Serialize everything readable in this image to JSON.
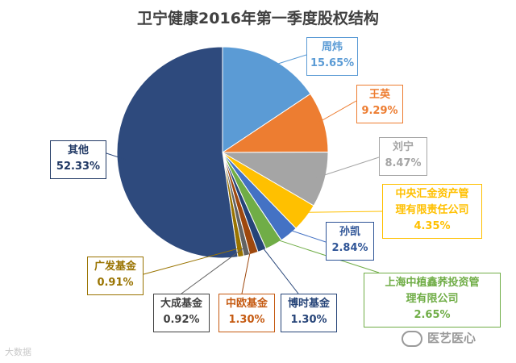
{
  "chart_data": {
    "type": "pie",
    "title": "卫宁健康2016年第一季度股权结构",
    "start_angle_deg": 0,
    "direction": "clockwise",
    "slices": [
      {
        "name": "周炜",
        "value_label": "15.65%",
        "value": 15.65,
        "color": "#5b9bd5",
        "label_color": "#5b9bd5"
      },
      {
        "name": "王英",
        "value_label": "9.29%",
        "value": 9.29,
        "color": "#ed7d31",
        "label_color": "#ed7d31"
      },
      {
        "name": "刘宁",
        "value_label": "8.47%",
        "value": 8.47,
        "color": "#a5a5a5",
        "label_color": "#a5a5a5"
      },
      {
        "name": "中央汇金资产管理有限责任公司",
        "name_line1": "中央汇金资产管",
        "name_line2": "理有限责任公司",
        "value_label": "4.35%",
        "value": 4.35,
        "color": "#ffc000",
        "label_color": "#ffc000"
      },
      {
        "name": "孙凯",
        "value_label": "2.84%",
        "value": 2.84,
        "color": "#4472c4",
        "label_color": "#2f5597"
      },
      {
        "name": "上海中植鑫荞投资管理有限公司",
        "name_line1": "上海中植鑫荞投资管",
        "name_line2": "理有限公司",
        "value_label": "2.65%",
        "value": 2.65,
        "color": "#70ad47",
        "label_color": "#70ad47"
      },
      {
        "name": "博时基金",
        "value_label": "1.30%",
        "value": 1.3,
        "color": "#264478",
        "label_color": "#264478"
      },
      {
        "name": "中欧基金",
        "value_label": "1.30%",
        "value": 1.3,
        "color": "#9e480e",
        "label_color": "#c55a11"
      },
      {
        "name": "大成基金",
        "value_label": "0.92%",
        "value": 0.92,
        "color": "#636363",
        "label_color": "#404040"
      },
      {
        "name": "广发基金",
        "value_label": "0.91%",
        "value": 0.91,
        "color": "#997300",
        "label_color": "#997300"
      },
      {
        "name": "其他",
        "value_label": "52.33%",
        "value": 52.33,
        "color": "#2e4a7d",
        "label_color": "#203864"
      }
    ]
  },
  "watermarks": {
    "left": "大数据",
    "right": "医艺医心"
  }
}
